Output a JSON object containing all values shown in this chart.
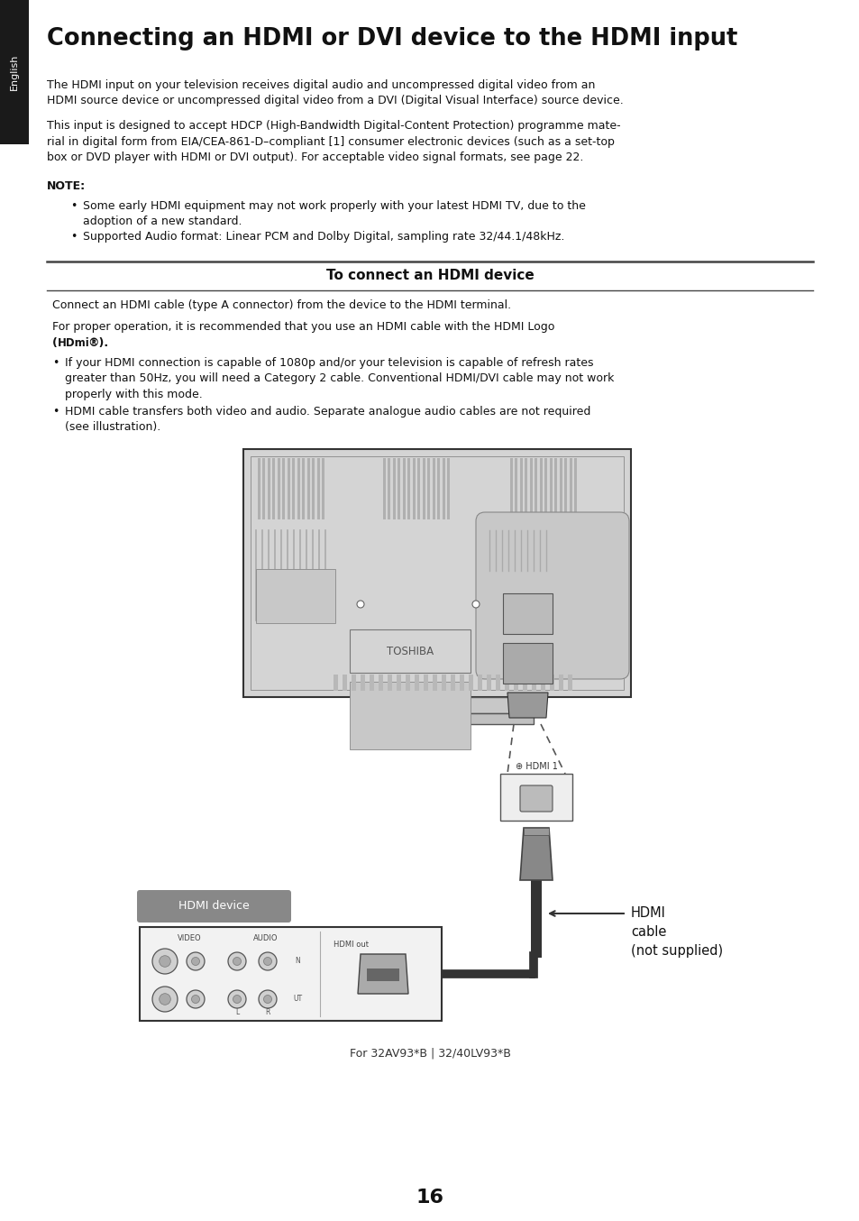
{
  "title": "Connecting an HDMI or DVI device to the HDMI input",
  "sidebar_text": "English",
  "sidebar_bg": "#1a1a1a",
  "page_bg": "#ffffff",
  "para1": "The HDMI input on your television receives digital audio and uncompressed digital video from an\nHDMI source device or uncompressed digital video from a DVI (Digital Visual Interface) source device.",
  "para2": "This input is designed to accept HDCP (High-Bandwidth Digital-Content Protection) programme mate-\nrial in digital form from EIA/CEA-861-D–compliant [1] consumer electronic devices (such as a set-top\nbox or DVD player with HDMI or DVI output). For acceptable video signal formats, see page 22.",
  "note_label": "NOTE:",
  "note1": "Some early HDMI equipment may not work properly with your latest HDMI TV, due to the\nadoption of a new standard.",
  "note2": "Supported Audio format: Linear PCM and Dolby Digital, sampling rate 32/44.1/48kHz.",
  "section_title": "To connect an HDMI device",
  "connect_para1": "Connect an HDMI cable (type A connector) from the device to the HDMI terminal.",
  "connect_para2a": "For proper operation, it is recommended that you use an HDMI cable with the HDMI Logo",
  "connect_para2b": "(HDmi®).",
  "bullet1": "If your HDMI connection is capable of 1080p and/or your television is capable of refresh rates\ngreater than 50Hz, you will need a Category 2 cable. Conventional HDMI/DVI cable may not work\nproperly with this mode.",
  "bullet2": "HDMI cable transfers both video and audio. Separate analogue audio cables are not required\n(see illustration).",
  "hdmi_device_label": "HDMI device",
  "hdmi_cable_label": "HDMI\ncable\n(not supplied)",
  "hdmi1_label": "⊕ HDMI 1",
  "for_label": "For 32AV93*B | 32/40LV93*B",
  "page_number": "16",
  "toshiba_label": "TOSHIBA",
  "video_label": "VIDEO",
  "audio_label": "AUDIO",
  "hdmi_out_label": "HDMI out"
}
